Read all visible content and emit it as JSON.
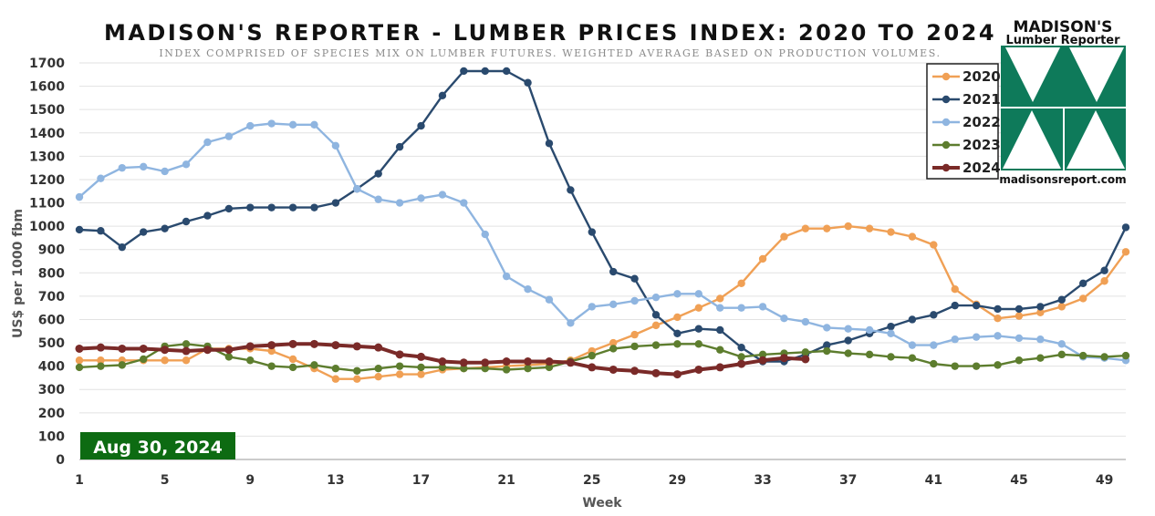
{
  "chart_data": {
    "type": "line",
    "title": "MADISON'S REPORTER - LUMBER PRICES INDEX: 2020 TO 2024",
    "subtitle": "INDEX COMPRISED OF SPECIES MIX ON LUMBER FUTURES. WEIGHTED AVERAGE BASED ON PRODUCTION VOLUMES.",
    "xlabel": "Week",
    "ylabel": "US$ per 1000 fbm",
    "xlim": [
      1,
      50
    ],
    "ylim": [
      0,
      1700
    ],
    "x_ticks": [
      1,
      5,
      9,
      13,
      17,
      21,
      25,
      29,
      33,
      37,
      41,
      45,
      49
    ],
    "y_ticks": [
      0,
      100,
      200,
      300,
      400,
      500,
      600,
      700,
      800,
      900,
      1000,
      1100,
      1200,
      1300,
      1400,
      1500,
      1600,
      1700
    ],
    "grid": "horizontal",
    "legend_position": "top-right",
    "date_label": "Aug 30, 2024",
    "series": [
      {
        "name": "2020",
        "color": "#f0a055",
        "values": [
          425,
          425,
          425,
          425,
          425,
          425,
          475,
          475,
          475,
          465,
          430,
          390,
          345,
          345,
          355,
          365,
          365,
          385,
          390,
          395,
          400,
          405,
          410,
          425,
          465,
          500,
          535,
          575,
          610,
          650,
          690,
          755,
          860,
          955,
          990,
          990,
          1000,
          990,
          975,
          955,
          920,
          730,
          665,
          605,
          615,
          630,
          655,
          690,
          765,
          890
        ]
      },
      {
        "name": "2021",
        "color": "#2a4a6e",
        "values": [
          985,
          980,
          910,
          975,
          990,
          1020,
          1045,
          1075,
          1080,
          1080,
          1080,
          1080,
          1100,
          1160,
          1225,
          1340,
          1430,
          1560,
          1665,
          1665,
          1665,
          1615,
          1355,
          1155,
          975,
          805,
          775,
          620,
          540,
          560,
          555,
          480,
          420,
          420,
          450,
          490,
          510,
          540,
          570,
          600,
          620,
          660,
          660,
          645,
          645,
          655,
          685,
          755,
          810,
          995
        ]
      },
      {
        "name": "2022",
        "color": "#8fb5e0",
        "values": [
          1125,
          1205,
          1250,
          1255,
          1235,
          1265,
          1360,
          1385,
          1430,
          1440,
          1435,
          1435,
          1345,
          1160,
          1115,
          1100,
          1120,
          1135,
          1100,
          965,
          785,
          730,
          685,
          585,
          655,
          665,
          680,
          695,
          710,
          710,
          650,
          650,
          655,
          605,
          590,
          565,
          560,
          555,
          540,
          490,
          490,
          515,
          525,
          530,
          520,
          515,
          495,
          440,
          435,
          425
        ]
      },
      {
        "name": "2023",
        "color": "#5d7d2e",
        "values": [
          395,
          400,
          405,
          430,
          485,
          495,
          485,
          440,
          425,
          400,
          395,
          405,
          390,
          380,
          390,
          400,
          395,
          395,
          390,
          390,
          385,
          390,
          395,
          420,
          445,
          475,
          485,
          490,
          495,
          495,
          470,
          440,
          450,
          455,
          460,
          465,
          455,
          450,
          440,
          435,
          410,
          400,
          400,
          405,
          425,
          435,
          450,
          445,
          440,
          445
        ]
      },
      {
        "name": "2024",
        "color": "#7a2a28",
        "values": [
          475,
          480,
          475,
          475,
          470,
          465,
          470,
          470,
          485,
          490,
          495,
          495,
          490,
          485,
          480,
          450,
          440,
          420,
          415,
          415,
          420,
          420,
          420,
          415,
          395,
          385,
          380,
          370,
          365,
          385,
          395,
          410,
          425,
          435,
          430
        ]
      }
    ]
  },
  "logo": {
    "name": "MADISON'S",
    "subtitle": "Lumber Reporter",
    "url": "madisonsreport.com",
    "color": "#0e7a5a"
  }
}
